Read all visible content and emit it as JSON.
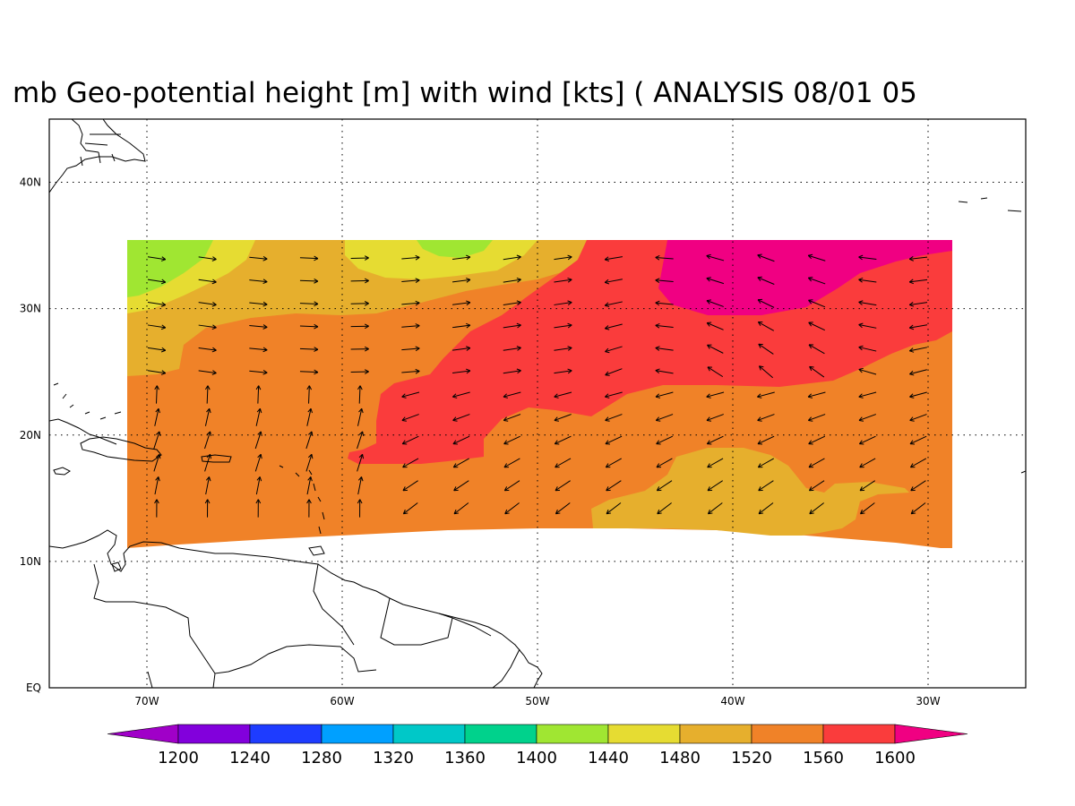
{
  "title": "mb Geo-potential height [m] with wind [kts] ( ANALYSIS 08/01 05",
  "map": {
    "lon_range": [
      -75,
      -25
    ],
    "lat_range": [
      0,
      45
    ],
    "lon_ticks": [
      {
        "value": -70,
        "label": "70W"
      },
      {
        "value": -60,
        "label": "60W"
      },
      {
        "value": -50,
        "label": "50W"
      },
      {
        "value": -40,
        "label": "40W"
      },
      {
        "value": -30,
        "label": "30W"
      }
    ],
    "lat_ticks": [
      {
        "value": 0,
        "label": "EQ"
      },
      {
        "value": 10,
        "label": "10N"
      },
      {
        "value": 20,
        "label": "20N"
      },
      {
        "value": 30,
        "label": "30N"
      },
      {
        "value": 40,
        "label": "40N"
      }
    ],
    "gridlines": "dotted",
    "field_extent": {
      "lon": [
        -71,
        -29
      ],
      "lat_north": 35.5,
      "lat_south": [
        11,
        12.5,
        12.5,
        11
      ]
    }
  },
  "colorbar": {
    "colors": [
      "#a000c8",
      "#8200dc",
      "#1e3cff",
      "#00a0ff",
      "#00c8c8",
      "#00d28c",
      "#a0e632",
      "#e6dc32",
      "#e6af2d",
      "#f08228",
      "#fa3c3c",
      "#f00082"
    ],
    "labels": [
      "1200",
      "1240",
      "1280",
      "1320",
      "1360",
      "1400",
      "1440",
      "1480",
      "1520",
      "1560",
      "1600"
    ]
  }
}
